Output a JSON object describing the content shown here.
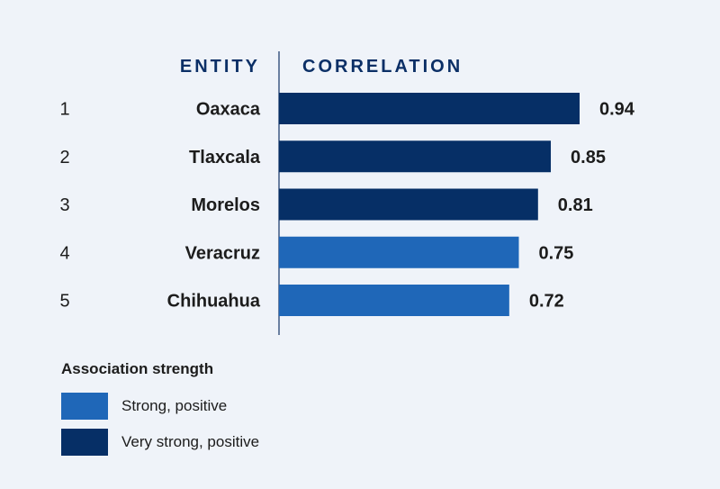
{
  "chart_data": {
    "type": "bar",
    "orientation": "horizontal",
    "headers": {
      "entity": "ENTITY",
      "correlation": "CORRELATION"
    },
    "categories": [
      "Oaxaca",
      "Tlaxcala",
      "Morelos",
      "Veracruz",
      "Chihuahua"
    ],
    "ranks": [
      "1",
      "2",
      "3",
      "4",
      "5"
    ],
    "values": [
      0.94,
      0.85,
      0.81,
      0.75,
      0.72
    ],
    "value_labels": [
      "0.94",
      "0.85",
      "0.81",
      "0.75",
      "0.72"
    ],
    "strength": [
      "Very strong, positive",
      "Very strong, positive",
      "Very strong, positive",
      "Strong, positive",
      "Strong, positive"
    ],
    "xlim": [
      0,
      1
    ]
  },
  "legend": {
    "title": "Association strength",
    "items": [
      {
        "label": "Strong, positive",
        "color": "#1f67b8"
      },
      {
        "label": "Very strong, positive",
        "color": "#062f66"
      }
    ]
  },
  "colors": {
    "axis_line": "#6a7fa0"
  }
}
